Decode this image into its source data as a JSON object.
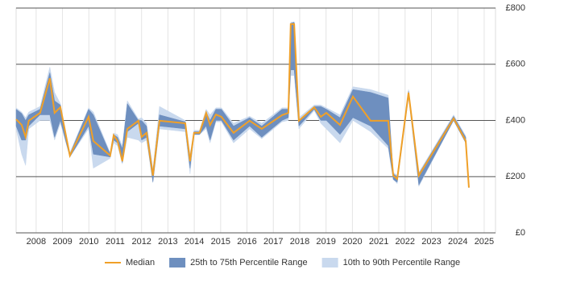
{
  "chart_data": {
    "type": "line",
    "x": [
      2007.24,
      2007.45,
      2007.6,
      2007.72,
      2008.15,
      2008.52,
      2008.7,
      2008.92,
      2009.28,
      2009.99,
      2010.17,
      2010.81,
      2010.94,
      2011.09,
      2011.27,
      2011.46,
      2011.88,
      2012.0,
      2012.19,
      2012.43,
      2012.68,
      2013.66,
      2013.84,
      2013.99,
      2014.2,
      2014.45,
      2014.6,
      2014.82,
      2015.03,
      2015.49,
      2016.1,
      2016.56,
      2017.33,
      2017.57,
      2017.66,
      2017.79,
      2017.97,
      2018.55,
      2018.8,
      2019.01,
      2019.53,
      2020.02,
      2020.69,
      2021.36,
      2021.55,
      2021.7,
      2022.13,
      2022.52,
      2023.84,
      2024.3,
      2024.42
    ],
    "series": [
      {
        "name": "Median",
        "color": "#f0a028",
        "values": [
          404,
          384,
          341,
          399,
          427,
          550,
          427,
          447,
          275,
          413,
          327,
          275,
          347,
          327,
          255,
          370,
          399,
          341,
          356,
          204,
          399,
          390,
          255,
          356,
          356,
          427,
          384,
          421,
          413,
          356,
          399,
          370,
          419,
          427,
          743,
          743,
          399,
          447,
          413,
          427,
          384,
          485,
          399,
          399,
          204,
          192,
          499,
          204,
          407,
          327,
          161
        ]
      },
      {
        "name": "25th to 75th Percentile Range",
        "color": "#6e8fbf",
        "lower": [
          380,
          330,
          330,
          380,
          420,
          420,
          340,
          400,
          270,
          380,
          280,
          270,
          330,
          320,
          250,
          360,
          390,
          330,
          340,
          180,
          380,
          370,
          230,
          350,
          350,
          380,
          330,
          400,
          400,
          330,
          380,
          340,
          400,
          410,
          580,
          580,
          380,
          440,
          400,
          400,
          350,
          410,
          380,
          310,
          190,
          180,
          490,
          170,
          400,
          320,
          161
        ],
        "upper": [
          440,
          425,
          400,
          420,
          440,
          570,
          470,
          455,
          280,
          440,
          420,
          280,
          350,
          340,
          300,
          460,
          400,
          400,
          380,
          220,
          420,
          395,
          270,
          360,
          360,
          430,
          400,
          440,
          440,
          380,
          410,
          380,
          440,
          440,
          745,
          750,
          400,
          450,
          450,
          440,
          410,
          510,
          500,
          480,
          210,
          200,
          505,
          210,
          415,
          340,
          161
        ]
      },
      {
        "name": "10th to 90th Percentile Range",
        "color": "#c9d9ee",
        "lower": [
          370,
          280,
          240,
          370,
          400,
          400,
          330,
          390,
          270,
          370,
          230,
          265,
          320,
          310,
          245,
          340,
          330,
          320,
          330,
          180,
          370,
          360,
          210,
          350,
          350,
          370,
          320,
          395,
          395,
          320,
          370,
          335,
          395,
          400,
          560,
          560,
          370,
          435,
          390,
          370,
          320,
          400,
          360,
          300,
          190,
          175,
          480,
          165,
          400,
          320,
          161
        ],
        "upper": [
          445,
          430,
          410,
          430,
          450,
          590,
          500,
          460,
          285,
          445,
          430,
          285,
          355,
          350,
          310,
          470,
          405,
          410,
          390,
          225,
          450,
          400,
          280,
          365,
          365,
          440,
          420,
          445,
          445,
          390,
          415,
          390,
          445,
          445,
          750,
          750,
          410,
          455,
          455,
          445,
          420,
          520,
          510,
          490,
          215,
          205,
          510,
          215,
          420,
          345,
          161
        ]
      }
    ],
    "xlim": [
      2007.24,
      2025.43
    ],
    "xticks": [
      2008,
      2009,
      2010,
      2011,
      2012,
      2013,
      2014,
      2015,
      2016,
      2017,
      2018,
      2019,
      2020,
      2021,
      2022,
      2023,
      2024,
      2025
    ],
    "ylim": [
      0,
      800
    ],
    "yticks": [
      {
        "value": 0,
        "label": "£0"
      },
      {
        "value": 200,
        "label": "£200"
      },
      {
        "value": 400,
        "label": "£400"
      },
      {
        "value": 600,
        "label": "£600"
      },
      {
        "value": 800,
        "label": "£800"
      }
    ],
    "grid": true
  }
}
